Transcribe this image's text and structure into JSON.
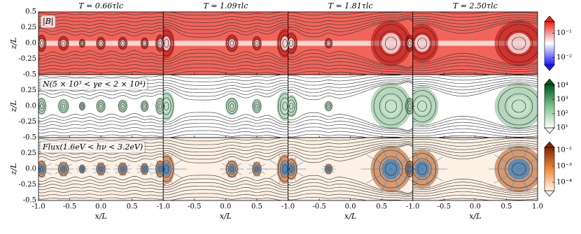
{
  "chart_data": {
    "type": "field-grid",
    "columns": [
      {
        "title": "T = 0.66τlc"
      },
      {
        "title": "T = 1.09τlc"
      },
      {
        "title": "T = 1.81τlc"
      },
      {
        "title": "T = 2.50τlc"
      }
    ],
    "rows": [
      {
        "label": "|B|",
        "colors": [
          "#1a1aff",
          "#ffffff",
          "#e8231d"
        ],
        "colorbar_lim": [
          0.005,
          0.3
        ],
        "colorbar_ticks": [
          {
            "value": 0.1,
            "label": "10⁻¹"
          },
          {
            "value": 0.01,
            "label": "10⁻²"
          }
        ]
      },
      {
        "label": "N(5 × 10³ < γe < 2 × 10⁴)",
        "colors": [
          "#ffffff",
          "#7fc28a",
          "#00561f"
        ],
        "colorbar_lim": [
          10,
          12000
        ],
        "colorbar_ticks": [
          {
            "value": 10000,
            "label": "10⁴"
          },
          {
            "value": 1000,
            "label": "10³"
          },
          {
            "value": 100,
            "label": "10²"
          },
          {
            "value": 10,
            "label": "10¹"
          }
        ]
      },
      {
        "label": "Flux(1.6eV < hν < 3.2eV)",
        "colors": [
          "#fff3e6",
          "#f08a3c",
          "#7f2704"
        ],
        "colorbar_lim": [
          3e-05,
          0.015
        ],
        "colorbar_ticks": [
          {
            "value": 0.01,
            "label": "10⁻²"
          },
          {
            "value": 0.001,
            "label": "10⁻³"
          },
          {
            "value": 0.0001,
            "label": "10⁻⁴"
          }
        ]
      }
    ],
    "xlabel": "x/L",
    "ylabel": "z/L",
    "xlim": [
      -1,
      1
    ],
    "ylim": [
      -0.5,
      0.5
    ],
    "xticks": [
      {
        "value": -1,
        "label": "-1.0"
      },
      -0.5,
      {
        "value": 0,
        "label": "0.0"
      },
      0.5,
      {
        "value": 1,
        "label": "1.0"
      }
    ],
    "yticks": [
      0.5,
      0.25,
      {
        "value": 0,
        "label": "0.0"
      },
      -0.25,
      -0.5
    ],
    "colorbar_log": true
  }
}
